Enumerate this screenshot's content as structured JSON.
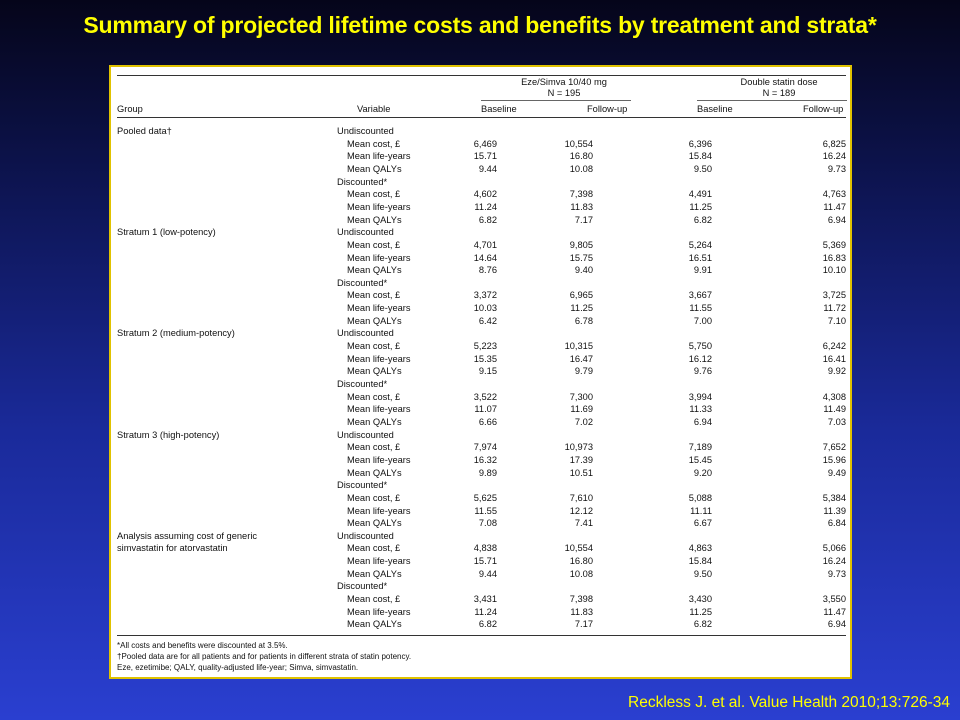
{
  "slide": {
    "title": "Summary of projected lifetime costs and benefits by treatment and strata*",
    "citation": "Reckless J. et al. Value Health 2010;13:726-34"
  },
  "table": {
    "group_header": "Group",
    "variable_header": "Variable",
    "arm1": {
      "name": "Eze/Simva 10/40 mg",
      "n": "N = 195"
    },
    "arm2": {
      "name": "Double statin dose",
      "n": "N = 189"
    },
    "baseline_label": "Baseline",
    "followup_label": "Follow-up",
    "sections": [
      {
        "group": [
          "Pooled data†"
        ],
        "blocks": [
          {
            "label": "Undiscounted",
            "rows": [
              [
                "Mean cost, £",
                "6,469",
                "10,554",
                "6,396",
                "6,825"
              ],
              [
                "Mean life-years",
                "15.71",
                "16.80",
                "15.84",
                "16.24"
              ],
              [
                "Mean QALYs",
                "9.44",
                "10.08",
                "9.50",
                "9.73"
              ]
            ]
          },
          {
            "label": "Discounted*",
            "rows": [
              [
                "Mean cost, £",
                "4,602",
                "7,398",
                "4,491",
                "4,763"
              ],
              [
                "Mean life-years",
                "11.24",
                "11.83",
                "11.25",
                "11.47"
              ],
              [
                "Mean QALYs",
                "6.82",
                "7.17",
                "6.82",
                "6.94"
              ]
            ]
          }
        ]
      },
      {
        "group": [
          "Stratum 1 (low-potency)"
        ],
        "blocks": [
          {
            "label": "Undiscounted",
            "rows": [
              [
                "Mean cost, £",
                "4,701",
                "9,805",
                "5,264",
                "5,369"
              ],
              [
                "Mean life-years",
                "14.64",
                "15.75",
                "16.51",
                "16.83"
              ],
              [
                "Mean QALYs",
                "8.76",
                "9.40",
                "9.91",
                "10.10"
              ]
            ]
          },
          {
            "label": "Discounted*",
            "rows": [
              [
                "Mean cost, £",
                "3,372",
                "6,965",
                "3,667",
                "3,725"
              ],
              [
                "Mean life-years",
                "10.03",
                "11.25",
                "11.55",
                "11.72"
              ],
              [
                "Mean QALYs",
                "6.42",
                "6.78",
                "7.00",
                "7.10"
              ]
            ]
          }
        ]
      },
      {
        "group": [
          "Stratum 2 (medium-potency)"
        ],
        "blocks": [
          {
            "label": "Undiscounted",
            "rows": [
              [
                "Mean cost, £",
                "5,223",
                "10,315",
                "5,750",
                "6,242"
              ],
              [
                "Mean life-years",
                "15.35",
                "16.47",
                "16.12",
                "16.41"
              ],
              [
                "Mean QALYs",
                "9.15",
                "9.79",
                "9.76",
                "9.92"
              ]
            ]
          },
          {
            "label": "Discounted*",
            "rows": [
              [
                "Mean cost, £",
                "3,522",
                "7,300",
                "3,994",
                "4,308"
              ],
              [
                "Mean life-years",
                "11.07",
                "11.69",
                "11.33",
                "11.49"
              ],
              [
                "Mean QALYs",
                "6.66",
                "7.02",
                "6.94",
                "7.03"
              ]
            ]
          }
        ]
      },
      {
        "group": [
          "Stratum 3 (high-potency)"
        ],
        "blocks": [
          {
            "label": "Undiscounted",
            "rows": [
              [
                "Mean cost, £",
                "7,974",
                "10,973",
                "7,189",
                "7,652"
              ],
              [
                "Mean life-years",
                "16.32",
                "17.39",
                "15.45",
                "15.96"
              ],
              [
                "Mean QALYs",
                "9.89",
                "10.51",
                "9.20",
                "9.49"
              ]
            ]
          },
          {
            "label": "Discounted*",
            "rows": [
              [
                "Mean cost, £",
                "5,625",
                "7,610",
                "5,088",
                "5,384"
              ],
              [
                "Mean life-years",
                "11.55",
                "12.12",
                "11.11",
                "11.39"
              ],
              [
                "Mean QALYs",
                "7.08",
                "7.41",
                "6.67",
                "6.84"
              ]
            ]
          }
        ]
      },
      {
        "group": [
          "Analysis assuming cost of generic",
          "simvastatin for atorvastatin"
        ],
        "blocks": [
          {
            "label": "Undiscounted",
            "rows": [
              [
                "Mean cost, £",
                "4,838",
                "10,554",
                "4,863",
                "5,066"
              ],
              [
                "Mean life-years",
                "15.71",
                "16.80",
                "15.84",
                "16.24"
              ],
              [
                "Mean QALYs",
                "9.44",
                "10.08",
                "9.50",
                "9.73"
              ]
            ]
          },
          {
            "label": "Discounted*",
            "rows": [
              [
                "Mean cost, £",
                "3,431",
                "7,398",
                "3,430",
                "3,550"
              ],
              [
                "Mean life-years",
                "11.24",
                "11.83",
                "11.25",
                "11.47"
              ],
              [
                "Mean QALYs",
                "6.82",
                "7.17",
                "6.82",
                "6.94"
              ]
            ]
          }
        ]
      }
    ],
    "footnotes": [
      "*All costs and benefits were discounted at 3.5%.",
      "†Pooled data are for all patients and for patients in different strata of statin potency.",
      "Eze, ezetimibe; QALY, quality-adjusted life-year; Simva, simvastatin."
    ]
  }
}
